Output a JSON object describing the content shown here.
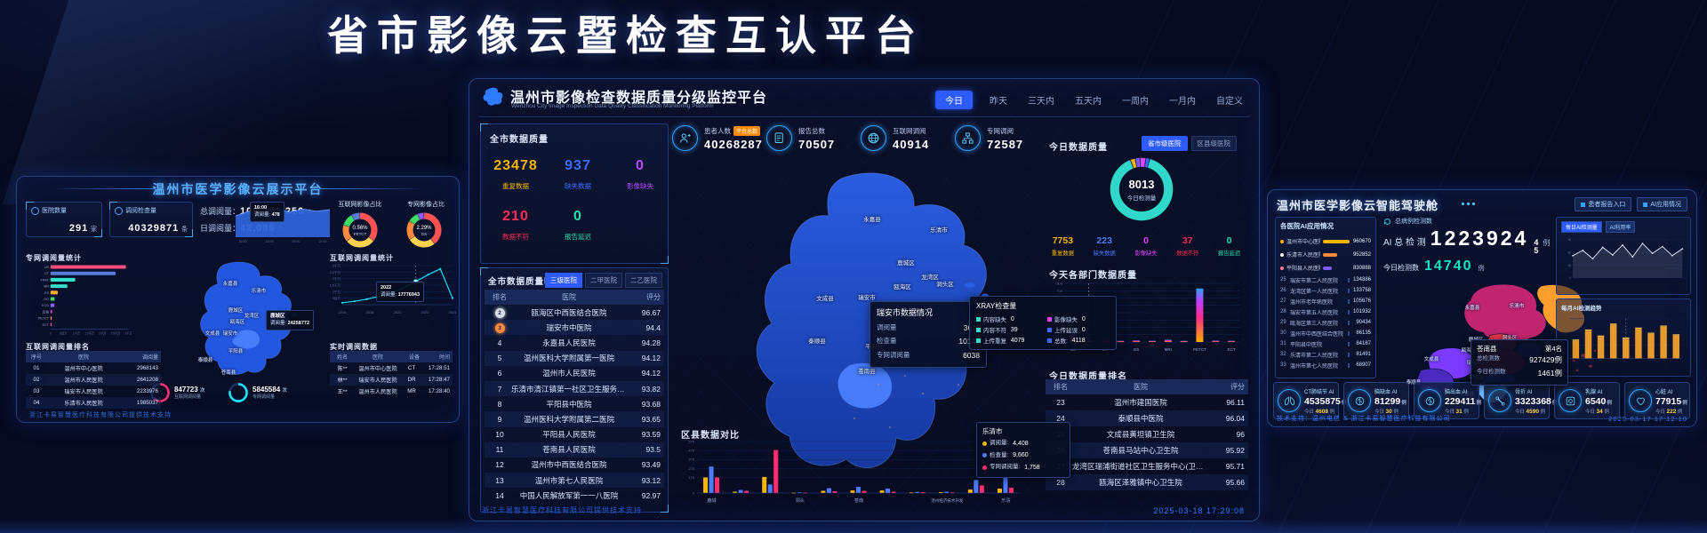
{
  "title": "省市影像云暨检查互认平台",
  "left_panel": {
    "title": "温州市医学影像云展示平台",
    "stat_boxes": [
      {
        "label": "医院数量",
        "value": "291",
        "unit": "家"
      },
      {
        "label": "调阅检查量",
        "value": "40329871",
        "unit": "条"
      }
    ],
    "totals": [
      {
        "label": "总调阅量：",
        "value": "109,489,250",
        "unit": "次"
      },
      {
        "label": "日调阅量：",
        "value": "42,086",
        "unit": "次"
      }
    ],
    "spark_tooltip": {
      "time": "16:00",
      "label": "调阅量:",
      "value": "478"
    },
    "donut_titles": [
      "互联网影像占比",
      "专网影像占比"
    ],
    "bar_section_title": "专网调阅量统计",
    "line_section_title": "互联网调阅量统计",
    "line_tooltip": {
      "x": "2022",
      "label": "调阅量:",
      "value": "17776943"
    },
    "map_tooltip": {
      "title": "鹿城区",
      "label": "调阅量:",
      "value": "24258772"
    },
    "gauges": [
      {
        "value": "847723",
        "unit": "次",
        "label": "互联网调阅量",
        "color": "#ff2d6f",
        "pct": 62
      },
      {
        "value": "5845584",
        "unit": "次",
        "label": "专网调阅量",
        "color": "#19e3ff",
        "pct": 78
      }
    ],
    "rank_table": {
      "title": "互联网调阅量排名",
      "headers": [
        "序号",
        "医院",
        "调阅量"
      ],
      "rows": [
        [
          "01",
          "温州市中心医院",
          "2968143"
        ],
        [
          "02",
          "温州市人民医院",
          "2641208"
        ],
        [
          "03",
          "瑞安市人民医院",
          "2233976"
        ],
        [
          "04",
          "乐清市人民医院",
          "1985037"
        ]
      ]
    },
    "realtime_table": {
      "title": "实时调阅数据",
      "headers": [
        "姓名",
        "医院",
        "设备",
        "时间"
      ],
      "rows": [
        [
          "陈**",
          "温州市中心医院",
          "CT",
          "17:28:51"
        ],
        [
          "林**",
          "瑞安市人民医院",
          "DR",
          "17:28:47"
        ],
        [
          "王**",
          "温州市人民医院",
          "MR",
          "17:28:40"
        ]
      ]
    },
    "map_labels": [
      "永嘉县",
      "乐清市",
      "鹿城区",
      "龙湾区",
      "瓯海区",
      "瑞安市",
      "文成县",
      "平阳县",
      "泰顺县",
      "苍南县"
    ],
    "footer": "浙江卡易智慧医疗科技有限公司提供技术支持"
  },
  "center_panel": {
    "title": "温州市影像检查数据质量分级监控平台",
    "subtitle": "Wenzhou City Image Inspection Data Quality Classification Monitoring Platform",
    "time_tabs": [
      "今日",
      "昨天",
      "三天内",
      "五天内",
      "一周内",
      "一月内",
      "自定义"
    ],
    "active_tab": "今日",
    "city_quality": {
      "title": "全市数据质量",
      "stats": [
        {
          "value": "23478",
          "label": "重复数据",
          "color": "#f7b500"
        },
        {
          "value": "937",
          "label": "缺失数据",
          "color": "#3e6bff"
        },
        {
          "value": "0",
          "label": "影像缺失",
          "color": "#b44dff"
        },
        {
          "value": "210",
          "label": "数据不符",
          "color": "#ff2d55"
        },
        {
          "value": "0",
          "label": "报告延迟",
          "color": "#1fe0b0"
        }
      ]
    },
    "detail_table": {
      "title": "全市数据质量明细",
      "tabs": [
        "三级医院",
        "二甲医院",
        "二乙医院"
      ],
      "active_tab": "三级医院",
      "headers": [
        "排名",
        "医院",
        "评分"
      ],
      "rows": [
        {
          "rank": "2",
          "medal": "silver",
          "hospital": "瓯海区中西医结合医院",
          "score": "96.67"
        },
        {
          "rank": "3",
          "medal": "bronze",
          "hospital": "瑞安市中医院",
          "score": "94.4"
        },
        {
          "rank": "4",
          "hospital": "永嘉县人民医院",
          "score": "94.28"
        },
        {
          "rank": "5",
          "hospital": "温州医科大学附属第一医院",
          "score": "94.12"
        },
        {
          "rank": "6",
          "hospital": "温州市人民医院",
          "score": "94.12"
        },
        {
          "rank": "7",
          "hospital": "乐清市清江镇第一社区卫生服务中心",
          "score": "93.82"
        },
        {
          "rank": "8",
          "hospital": "平阳县中医院",
          "score": "93.68"
        },
        {
          "rank": "9",
          "hospital": "温州医科大学附属第二医院",
          "score": "93.65"
        },
        {
          "rank": "10",
          "hospital": "平阳县人民医院",
          "score": "93.59"
        },
        {
          "rank": "11",
          "hospital": "苍南县人民医院",
          "score": "93.5"
        },
        {
          "rank": "12",
          "hospital": "温州市中西医结合医院",
          "score": "93.49"
        },
        {
          "rank": "13",
          "hospital": "温州市第七人民医院",
          "score": "93.12"
        },
        {
          "rank": "14",
          "hospital": "中国人民解放军第一一八医院",
          "score": "92.97"
        }
      ]
    },
    "kpis": [
      {
        "label": "患者人数",
        "badge": "平台总数",
        "value": "40268287",
        "icon": "patient-icon"
      },
      {
        "label": "报告总数",
        "value": "70507",
        "icon": "report-icon"
      },
      {
        "label": "互联网调阅",
        "value": "40914",
        "icon": "globe-icon"
      },
      {
        "label": "专网调阅",
        "value": "72587",
        "icon": "network-icon"
      }
    ],
    "map_labels": [
      "永嘉县",
      "乐清市",
      "鹿城区",
      "龙湾区",
      "洞头区",
      "瓯海区",
      "瑞安市",
      "文成县",
      "泰顺县",
      "平阳县",
      "苍南县"
    ],
    "ruian_tooltip": {
      "title": "瑞安市数据情况",
      "rows": [
        {
          "label": "调阅量",
          "value": "3611"
        },
        {
          "label": "检查量",
          "value": "10145"
        },
        {
          "label": "专网调阅量",
          "value": "6038"
        }
      ]
    },
    "xray_tooltip": {
      "title": "XRAY检查量",
      "items": [
        {
          "label": "内容缺失",
          "value": "0",
          "color": "#35e0c8"
        },
        {
          "label": "影像缺失",
          "value": "0",
          "color": "#e040fb"
        },
        {
          "label": "内容不符",
          "value": "39",
          "color": "#35e0c8"
        },
        {
          "label": "上传延误",
          "value": "0",
          "color": "#3e6bff"
        },
        {
          "label": "上传重复",
          "value": "4079",
          "color": "#35e0c8"
        },
        {
          "label": "总数:",
          "value": "4118",
          "color": "#3e6bff"
        }
      ]
    },
    "district_chart_title": "区县数据对比",
    "district_tooltip": {
      "title": "乐清市",
      "items": [
        {
          "label": "调阅量:",
          "value": "4,408",
          "color": "#f7b500"
        },
        {
          "label": "检查量:",
          "value": "9,660",
          "color": "#4d7bff"
        },
        {
          "label": "专网调阅量:",
          "value": "1,758",
          "color": "#ff2d6f"
        }
      ]
    },
    "today_quality": {
      "title": "今日数据质量",
      "toggles": [
        "省市级医院",
        "区县级医院"
      ],
      "active_toggle": "省市级医院",
      "donut_center_value": "8013",
      "donut_center_label": "今日检测量",
      "stats": [
        {
          "value": "7753",
          "label": "重复数据",
          "color": "#f7b500"
        },
        {
          "value": "223",
          "label": "缺失数据",
          "color": "#4d7bff"
        },
        {
          "value": "0",
          "label": "影像缺失",
          "color": "#e040fb"
        },
        {
          "value": "37",
          "label": "数据不符",
          "color": "#ff2d55"
        },
        {
          "value": "0",
          "label": "报告延迟",
          "color": "#1fe0b0"
        }
      ]
    },
    "dept_chart_title": "今天各部门数据质量",
    "rank_table": {
      "title": "今日数据质量排名",
      "headers": [
        "排名",
        "医院",
        "评分"
      ],
      "rows": [
        [
          "23",
          "温州市建国医院",
          "96.11"
        ],
        [
          "24",
          "泰顺县中医院",
          "96.04"
        ],
        [
          "25",
          "文成县黄坦镇卫生院",
          "96"
        ],
        [
          "26",
          "苍南县马站中心卫生院",
          "95.92"
        ],
        [
          "27",
          "龙湾区瑞浦街道社区卫生服务中心(卫生院)",
          "95.71"
        ],
        [
          "28",
          "瓯海区泽雅镇中心卫生院",
          "95.66"
        ]
      ]
    },
    "timestamp": "2025-03-18 17:29:08",
    "footer": "浙江卡易智慧医疗科技有限公司提供技术支持"
  },
  "right_panel": {
    "title": "温州市医学影像云智能驾驶舱",
    "header_buttons": [
      "患者报告入口",
      "AI应用情况"
    ],
    "ai_list": {
      "title": "各医院AI应用情况",
      "top3": [
        {
          "name": "温州市中心医院",
          "value": "960670",
          "dot": "#f7b500",
          "bar": "#f7b500",
          "pct": 100
        },
        {
          "name": "乐清市人民医院",
          "value": "952852",
          "dot": "#ffffff",
          "bar": "#ff8a3d",
          "pct": 52
        },
        {
          "name": "平阳县人民医院",
          "value": "830888",
          "dot": "#ff7a9e",
          "bar": "#7b5cff",
          "pct": 34
        }
      ],
      "rows": [
        [
          "25",
          "瑞安市第二人民医院",
          "134886"
        ],
        [
          "26",
          "龙湾区第一人民医院",
          "133758"
        ],
        [
          "27",
          "温州市老年病医院",
          "105676"
        ],
        [
          "28",
          "瑞安市第五人民医院",
          "101932"
        ],
        [
          "29",
          "瓯海区第三人民医院",
          "90434"
        ],
        [
          "30",
          "温州市中西医结合医院",
          "86135"
        ],
        [
          "31",
          "平阳县中医院",
          "84187"
        ],
        [
          "32",
          "乐清市第二人民医院",
          "81491"
        ],
        [
          "33",
          "温州市第七人民医院",
          "68907"
        ]
      ]
    },
    "counter": {
      "refresh_label": "总病例检测数",
      "label": "AI 总 检 测",
      "value_main": "1223924",
      "value_flip": [
        "4",
        "5"
      ],
      "unit": "例",
      "today_label": "今日检测数",
      "today_value": "14740",
      "today_unit": "例"
    },
    "map_tooltip": {
      "title": "苍南县",
      "rank": "第4名",
      "rows": [
        {
          "label": "总检测数",
          "value": "927429例"
        },
        {
          "label": "今日检测数",
          "value": "1461例"
        }
      ]
    },
    "mini_a_tabs": [
      "每日AI检测量",
      "AI利用率"
    ],
    "mini_b_title": "每月AI检测趋势",
    "map_labels": [
      "永嘉县",
      "乐清市",
      "鹿城区",
      "瓯海区",
      "龙湾区",
      "洞头区",
      "瑞安市",
      "文成县",
      "泰顺县",
      "平阳县",
      "苍南县"
    ],
    "badges": [
      {
        "label": "CT肺结节 AI",
        "value": "4535875",
        "unit": "例",
        "today_label": "今日",
        "today": "4608",
        "icon": "lung-icon"
      },
      {
        "label": "脑缺血 AI",
        "value": "81299",
        "unit": "例",
        "today_label": "今日",
        "today": "30",
        "icon": "brain-icon"
      },
      {
        "label": "脑出血 AI",
        "value": "229411",
        "unit": "例",
        "today_label": "今日",
        "today": "31",
        "icon": "brain-icon"
      },
      {
        "label": "骨折 AI",
        "value": "3323368",
        "unit": "例",
        "today_label": "今日",
        "today": "4590",
        "icon": "bone-icon"
      },
      {
        "label": "乳腺 AI",
        "value": "6540",
        "unit": "例",
        "today_label": "今日",
        "today": "34",
        "icon": "scan-icon"
      },
      {
        "label": "心脏 AI",
        "value": "77915",
        "unit": "例",
        "today_label": "今日",
        "today": "222",
        "icon": "heart-icon"
      }
    ],
    "footer": "技术支持：温州电信 & 浙江卡易智慧医疗科技有限公司",
    "timestamp": "2025-03-17 17:12:10"
  },
  "chart_data": [
    {
      "id": "left_modality_bars",
      "type": "bar",
      "orientation": "horizontal",
      "title": "专网调阅量统计",
      "categories": [
        "US",
        "CT",
        "XRAY",
        "MR",
        "ES",
        "OG",
        "ECG",
        "其他",
        "PETCT",
        "ECT"
      ],
      "values": [
        2900,
        2500,
        950,
        650,
        280,
        160,
        150,
        60,
        50,
        40
      ],
      "value_unit": "万次",
      "xticks": [
        "0",
        "5百万",
        "1千万",
        "1.5千万",
        "2千万",
        "2.5千万",
        "3千万"
      ],
      "xlim": [
        0,
        3000
      ],
      "colors": [
        "#ff4d7d",
        "#5a7bd8",
        "#35e0c8",
        "#35e0c8",
        "#ffaa2b",
        "#3ddc64",
        "#8a5cff",
        "#e040fb",
        "#ff8a3d",
        "#ff4d7d"
      ]
    },
    {
      "id": "left_spark_area",
      "type": "area",
      "x": [
        "16:00",
        "18:00",
        "20:00",
        "22:00"
      ],
      "values": [
        350,
        430,
        390,
        470,
        420,
        465,
        430,
        455
      ],
      "ylim": [
        0,
        500
      ],
      "color": "#2f63d8"
    },
    {
      "id": "left_donut_internet",
      "type": "pie",
      "title": "互联网影像占比",
      "center_value": "0.56%",
      "center_label": "PETCT",
      "slices": [
        {
          "value": 36,
          "color": "#ff5252"
        },
        {
          "value": 28,
          "color": "#ffd24d"
        },
        {
          "value": 16,
          "color": "#ff8a3d"
        },
        {
          "value": 12,
          "color": "#3ddc64"
        },
        {
          "value": 8,
          "color": "#5a7bd8"
        }
      ]
    },
    {
      "id": "left_donut_private",
      "type": "pie",
      "title": "专网影像占比",
      "center_value": "2.29%",
      "center_label": "DS",
      "slices": [
        {
          "value": 40,
          "color": "#ff5252"
        },
        {
          "value": 26,
          "color": "#ffd24d"
        },
        {
          "value": 18,
          "color": "#ff8a3d"
        },
        {
          "value": 10,
          "color": "#3ddc64"
        },
        {
          "value": 6,
          "color": "#8a5cff"
        }
      ]
    },
    {
      "id": "left_line_internet",
      "type": "line",
      "title": "互联网调阅量统计",
      "x": [
        "2016",
        "2018",
        "2020",
        "2022",
        "2024"
      ],
      "values": [
        150,
        260,
        420,
        650,
        900,
        1300,
        1778,
        2300,
        2750,
        500
      ],
      "yticks": [
        "5百万",
        "1千万",
        "1.5千万",
        "2千万",
        "2.5千万",
        "3千万"
      ],
      "ylim": [
        0,
        3000
      ],
      "hover_index": 6,
      "color": "#19e3ff"
    },
    {
      "id": "center_today_donut",
      "type": "pie",
      "center_value": "8013",
      "center_label": "今日检测量",
      "slices": [
        {
          "value": 2.5,
          "color": "#f7b500"
        },
        {
          "value": 2.5,
          "color": "#7b5cff"
        },
        {
          "value": 3,
          "color": "#e040fb"
        },
        {
          "value": 2,
          "color": "#3e6bff"
        },
        {
          "value": 90,
          "color": "#2fd8c8"
        }
      ]
    },
    {
      "id": "center_dept_bars",
      "type": "bar",
      "title": "今天各部门数据质量",
      "categories": [
        "US",
        "",
        "CT",
        "",
        "ES",
        "",
        "MRI",
        "",
        "PETCT",
        "",
        "ECT"
      ],
      "values": [
        130,
        20,
        25,
        15,
        20,
        15,
        30,
        15,
        730,
        18,
        15
      ],
      "ylim": [
        0,
        800
      ],
      "yticks": [
        "0",
        "100",
        "200",
        "300",
        "400",
        "500",
        "600",
        "700",
        "800"
      ],
      "hover_index": 1
    },
    {
      "id": "center_district_bars",
      "type": "bar",
      "title": "区县数据对比",
      "categories": [
        "鹿城",
        "",
        "",
        "洞头",
        "",
        "苍南",
        "",
        "",
        "温州经济技术开发",
        "",
        "乐清"
      ],
      "series": [
        {
          "name": "调阅量",
          "color": "#f7b500",
          "values": [
            175,
            15,
            180,
            5,
            25,
            28,
            28,
            8,
            10,
            38,
            50
          ]
        },
        {
          "name": "检查量",
          "color": "#4d7bff",
          "values": [
            295,
            35,
            95,
            8,
            55,
            70,
            50,
            12,
            15,
            145,
            175
          ]
        },
        {
          "name": "专网调阅量",
          "color": "#ff2d6f",
          "values": [
            175,
            25,
            480,
            5,
            20,
            25,
            15,
            10,
            8,
            85,
            60
          ]
        }
      ],
      "ylim": [
        0,
        575
      ],
      "yticks": [
        "0",
        "175",
        "275",
        "375",
        "475",
        "575"
      ],
      "hover_index": 10
    },
    {
      "id": "right_daily_line",
      "type": "line",
      "values": [
        58,
        72,
        50,
        80,
        60,
        86,
        55,
        90,
        64,
        82,
        58,
        76
      ],
      "ylim": [
        0,
        100
      ],
      "color": "#dfe9ff"
    },
    {
      "id": "right_monthly_bars",
      "type": "bar",
      "values": [
        45,
        70,
        55,
        85,
        50,
        75,
        62,
        80,
        58
      ],
      "ylim": [
        0,
        100
      ],
      "color": "#ffaa2b"
    }
  ]
}
